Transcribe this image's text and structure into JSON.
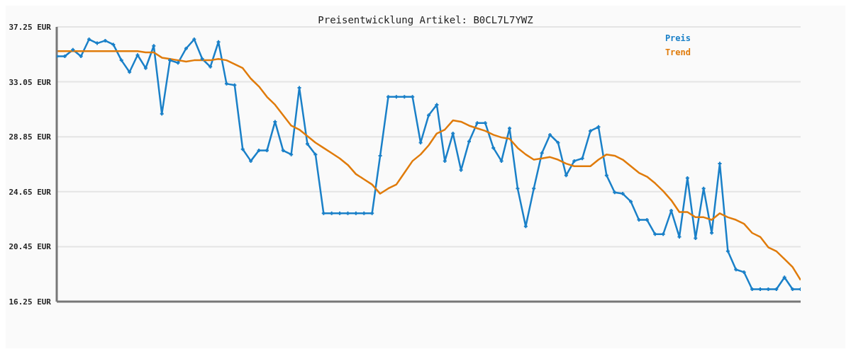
{
  "chart_data": {
    "type": "line",
    "title": "Preisentwicklung Artikel: B0CL7L7YWZ",
    "categories": [
      null,
      null,
      null,
      null,
      null,
      null,
      null,
      null,
      null,
      null,
      null,
      null,
      null,
      null,
      null,
      null,
      null,
      null,
      null,
      null,
      null,
      null,
      null,
      null,
      null,
      null,
      null,
      null,
      null,
      null,
      null,
      null,
      null,
      null,
      null,
      null,
      null,
      null,
      null,
      null,
      null,
      null,
      null,
      null,
      null,
      null,
      null,
      null,
      null,
      null,
      null,
      null,
      null,
      null,
      null,
      null,
      null,
      null,
      null,
      null,
      null,
      null,
      null,
      null,
      null,
      null,
      null,
      null,
      null,
      null,
      null,
      null,
      null,
      null,
      null,
      null,
      null,
      null,
      null,
      null,
      null,
      null,
      null,
      null,
      null,
      null,
      null,
      null,
      null,
      null,
      null,
      null,
      null
    ],
    "series": [
      {
        "name": "Preis",
        "color": "#1a80c8",
        "marker": "cross",
        "values": [
          35.0,
          35.0,
          35.5,
          35.0,
          36.3,
          36.0,
          36.2,
          35.9,
          34.7,
          33.8,
          35.1,
          34.1,
          35.8,
          30.6,
          34.7,
          34.5,
          35.6,
          36.3,
          34.8,
          34.2,
          36.1,
          32.9,
          32.8,
          27.9,
          27.0,
          27.8,
          27.8,
          30.0,
          27.8,
          27.5,
          32.6,
          28.3,
          27.5,
          23.0,
          23.0,
          23.0,
          23.0,
          23.0,
          23.0,
          23.0,
          27.4,
          31.9,
          31.9,
          31.9,
          31.9,
          28.4,
          30.5,
          31.3,
          27.0,
          29.1,
          26.3,
          28.5,
          29.9,
          29.9,
          28.0,
          27.0,
          29.5,
          24.9,
          22.0,
          24.9,
          27.6,
          29.0,
          28.4,
          25.9,
          27.0,
          27.2,
          29.3,
          29.6,
          25.9,
          24.6,
          24.5,
          23.9,
          22.5,
          22.5,
          21.4,
          21.4,
          23.2,
          21.2,
          25.7,
          21.1,
          24.9,
          21.5,
          26.8,
          20.1,
          18.7,
          18.5,
          17.2,
          17.2,
          17.2,
          17.2,
          18.1,
          17.2,
          17.2
        ]
      },
      {
        "name": "Trend",
        "color": "#e07b0a",
        "marker": "none",
        "values": [
          35.4,
          35.4,
          35.4,
          35.4,
          35.4,
          35.4,
          35.4,
          35.4,
          35.4,
          35.4,
          35.4,
          35.3,
          35.3,
          34.9,
          34.8,
          34.7,
          34.6,
          34.7,
          34.7,
          34.7,
          34.8,
          34.7,
          34.4,
          34.1,
          33.3,
          32.7,
          31.9,
          31.3,
          30.5,
          29.7,
          29.4,
          28.9,
          28.4,
          28.0,
          27.6,
          27.2,
          26.7,
          26.0,
          25.6,
          25.2,
          24.5,
          24.9,
          25.2,
          26.1,
          27.0,
          27.5,
          28.2,
          29.1,
          29.4,
          30.1,
          30.0,
          29.7,
          29.5,
          29.3,
          29.0,
          28.8,
          28.7,
          28.0,
          27.5,
          27.1,
          27.2,
          27.3,
          27.1,
          26.8,
          26.6,
          26.6,
          26.6,
          27.1,
          27.5,
          27.4,
          27.1,
          26.6,
          26.1,
          25.8,
          25.3,
          24.7,
          24.0,
          23.1,
          23.1,
          22.7,
          22.7,
          22.5,
          23.0,
          22.7,
          22.5,
          22.2,
          21.5,
          21.2,
          20.4,
          20.1,
          19.5,
          18.9,
          17.9
        ]
      }
    ],
    "ylim": [
      16.25,
      37.25
    ],
    "yticks": [
      {
        "value": 16.25,
        "label": "16.25 EUR"
      },
      {
        "value": 20.45,
        "label": "20.45 EUR"
      },
      {
        "value": 24.65,
        "label": "24.65 EUR"
      },
      {
        "value": 28.85,
        "label": "28.85 EUR"
      },
      {
        "value": 33.05,
        "label": "33.05 EUR"
      },
      {
        "value": 37.25,
        "label": "37.25 EUR"
      }
    ],
    "grid": "y",
    "legend": "top right",
    "tick_labels": "y",
    "line_style": "solid"
  }
}
